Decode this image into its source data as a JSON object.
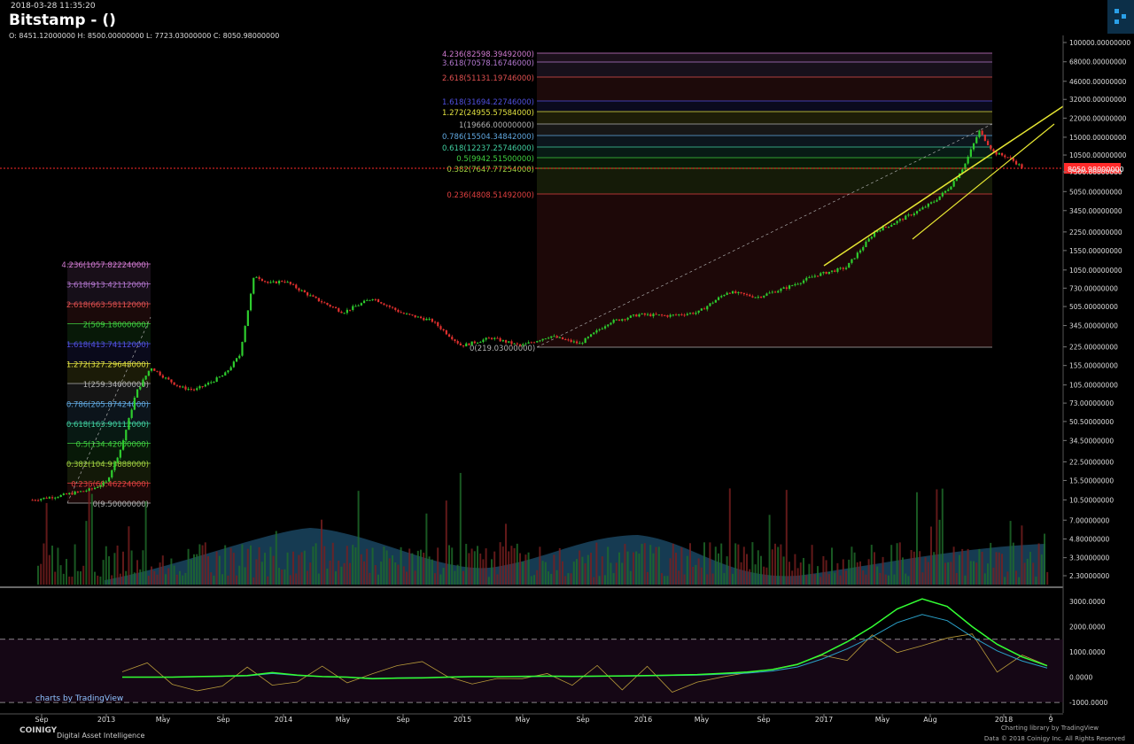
{
  "header": {
    "datetime": "2018-03-28 11:35:20",
    "title": "Bitstamp -  ()",
    "ohlc": "O: 8451.12000000 H: 8500.00000000 L: 7723.03000000 C: 8050.98000000"
  },
  "footer": {
    "brand": "COINIGY",
    "tagline": "Digital Asset Intelligence",
    "tv_label": "charts by TradingView",
    "credit_line1": "Charting library by  TradingView",
    "credit_line2": "Data © 2018  Coinigy Inc. All Rights Reserved"
  },
  "colors": {
    "up": "#2ecc2e",
    "down": "#e0302e",
    "fib_line": "#888888",
    "current_price": "#ff2a2a",
    "osc_fast": "#33ff33",
    "osc_slow": "#2aa0c8",
    "osc_raw": "#b89a3a",
    "trend": "#e6e632"
  },
  "chart_data": [
    {
      "type": "line",
      "title": "Bitstamp -  ()",
      "scale": "log",
      "ylim": [
        2.0,
        100000
      ],
      "x_ticks": [
        "Sep",
        "2013",
        "May",
        "Sep",
        "2014",
        "May",
        "Sep",
        "2015",
        "May",
        "Sep",
        "2016",
        "May",
        "Sep",
        "2017",
        "May",
        "Aug",
        "2018",
        "9"
      ],
      "y_ticks": [
        "100000.00000000",
        "68000.00000000",
        "46000.00000000",
        "32000.00000000",
        "22000.00000000",
        "15000.00000000",
        "10500.00000000",
        "7500.00000000",
        "5050.00000000",
        "3450.00000000",
        "2250.00000000",
        "1550.00000000",
        "1050.00000000",
        "730.00000000",
        "505.00000000",
        "345.00000000",
        "225.00000000",
        "155.00000000",
        "105.00000000",
        "73.00000000",
        "50.50000000",
        "34.50000000",
        "22.50000000",
        "15.50000000",
        "10.50000000",
        "7.00000000",
        "4.80000000",
        "3.30000000",
        "2.30000000"
      ],
      "current_price_label": "8050.98000000",
      "current_price": 8050.98,
      "series": [
        {
          "name": "",
          "x": [
            "2012-08",
            "2012-10",
            "2012-12",
            "2013-01",
            "2013-02",
            "2013-03",
            "2013-04",
            "2013-05",
            "2013-06",
            "2013-07",
            "2013-08",
            "2013-09",
            "2013-10",
            "2013-11",
            "2013-12",
            "2014-01",
            "2014-03",
            "2014-05",
            "2014-07",
            "2014-09",
            "2014-11",
            "2015-01",
            "2015-03",
            "2015-05",
            "2015-07",
            "2015-09",
            "2015-11",
            "2016-01",
            "2016-03",
            "2016-05",
            "2016-07",
            "2016-09",
            "2016-11",
            "2017-01",
            "2017-03",
            "2017-05",
            "2017-06",
            "2017-08",
            "2017-09",
            "2017-10",
            "2017-11",
            "2017-12",
            "2018-01",
            "2018-02",
            "2018-03"
          ],
          "values": [
            10.5,
            11.5,
            13,
            15,
            30,
            90,
            150,
            120,
            100,
            95,
            110,
            130,
            190,
            950,
            800,
            850,
            600,
            450,
            600,
            440,
            380,
            230,
            270,
            230,
            280,
            240,
            370,
            430,
            420,
            450,
            680,
            610,
            740,
            950,
            1100,
            2300,
            2600,
            3500,
            4200,
            5500,
            8500,
            17000,
            11000,
            10000,
            8050
          ]
        }
      ],
      "fibonacci_left": {
        "levels": [
          {
            "ratio": "4.236",
            "value": "1057.82224000",
            "color": "#d07ad0"
          },
          {
            "ratio": "3.618",
            "value": "913.42112000",
            "color": "#b478d0"
          },
          {
            "ratio": "2.618",
            "value": "663.58112000",
            "color": "#e05050"
          },
          {
            "ratio": "2",
            "value": "509.18000000",
            "color": "#40d040"
          },
          {
            "ratio": "1.618",
            "value": "413.74112000",
            "color": "#5050e0"
          },
          {
            "ratio": "1.272",
            "value": "327.29648000",
            "color": "#e0e040"
          },
          {
            "ratio": "1",
            "value": "259.34000000",
            "color": "#b0b0b0"
          },
          {
            "ratio": "0.786",
            "value": "205.87424000",
            "color": "#60a8e0"
          },
          {
            "ratio": "0.618",
            "value": "163.90112000",
            "color": "#40d0a0"
          },
          {
            "ratio": "0.5",
            "value": "134.42000000",
            "color": "#40d040"
          },
          {
            "ratio": "0.382",
            "value": "104.93888000",
            "color": "#a0d040"
          },
          {
            "ratio": "0.236",
            "value": "68.46224000",
            "color": "#e04040"
          },
          {
            "ratio": "0",
            "value": "9.50000000",
            "color": "#b0b0b0"
          }
        ]
      },
      "fibonacci_right": {
        "levels": [
          {
            "ratio": "4.236",
            "value": "82598.39492000",
            "color": "#d07ad0"
          },
          {
            "ratio": "3.618",
            "value": "70578.16746000",
            "color": "#b478d0"
          },
          {
            "ratio": "2.618",
            "value": "51131.19746000",
            "color": "#e05050"
          },
          {
            "ratio": "1.618",
            "value": "31694.22746000",
            "color": "#5050e0"
          },
          {
            "ratio": "1.272",
            "value": "24955.57584000",
            "color": "#e0e040"
          },
          {
            "ratio": "1",
            "value": "19666.00000000",
            "color": "#b0b0b0"
          },
          {
            "ratio": "0.786",
            "value": "15504.34842000",
            "color": "#60a8e0"
          },
          {
            "ratio": "0.618",
            "value": "12237.25746000",
            "color": "#40d0a0"
          },
          {
            "ratio": "0.5",
            "value": "9942.51500000",
            "color": "#40d040"
          },
          {
            "ratio": "0.382",
            "value": "7647.77254000",
            "color": "#a0d040"
          },
          {
            "ratio": "0.236",
            "value": "4808.51492000",
            "color": "#e04040"
          },
          {
            "ratio": "0",
            "value": "219.03000000",
            "color": "#b0b0b0"
          }
        ]
      }
    },
    {
      "type": "line",
      "title": "",
      "ylim": [
        -1000,
        3000
      ],
      "y_ticks": [
        "3000.0000",
        "2000.0000",
        "1000.0000",
        "0.0000",
        "-1000.0000"
      ],
      "levels": [
        1500,
        -1000
      ],
      "series": [
        {
          "name": "",
          "values": [
            0,
            0,
            0,
            20,
            40,
            60,
            180,
            80,
            20,
            0,
            -60,
            -40,
            -30,
            0,
            20,
            20,
            30,
            40,
            30,
            40,
            50,
            60,
            80,
            100,
            150,
            200,
            300,
            500,
            900,
            1400,
            2000,
            2700,
            3100,
            2800,
            2000,
            1300,
            800,
            450
          ]
        }
      ]
    }
  ]
}
